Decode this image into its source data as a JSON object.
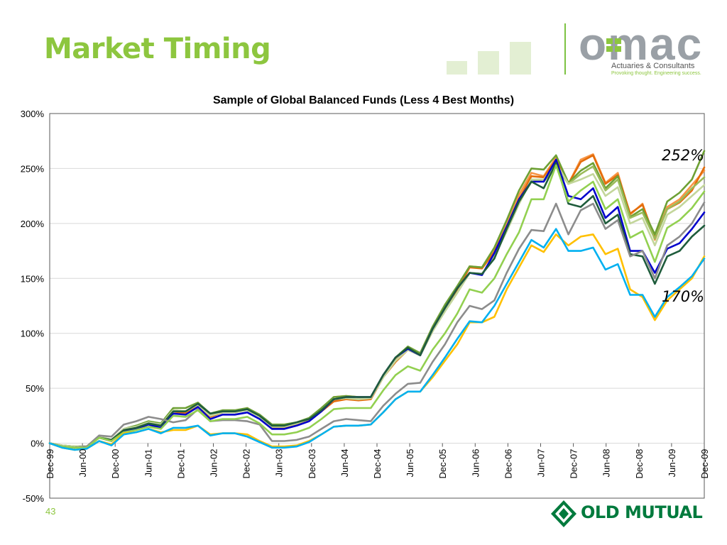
{
  "slide": {
    "title": "Market Timing",
    "page_number": "43"
  },
  "omac": {
    "name": "omac",
    "tagline": "Actuaries & Consultants",
    "subtagline": "Provoking thought. Engineering success."
  },
  "footer_logo": {
    "name": "OLD MUTUAL"
  },
  "annotations": {
    "top": "252%",
    "bottom": "170%"
  },
  "colors": {
    "title_green": "#8dc63f",
    "grid": "#d9d9d9"
  },
  "chart_data": {
    "type": "line",
    "title": "Sample of Global Balanced Funds (Less 4 Best Months)",
    "xlabel": "",
    "ylabel": "",
    "ylim": [
      -50,
      300
    ],
    "yticks": [
      -50,
      0,
      50,
      100,
      150,
      200,
      250,
      300
    ],
    "ytick_labels": [
      "-50%",
      "0%",
      "50%",
      "100%",
      "150%",
      "200%",
      "250%",
      "300%"
    ],
    "xtick_labels": [
      "Dec-99",
      "Jun-00",
      "Dec-00",
      "Jun-01",
      "Dec-01",
      "Jun-02",
      "Dec-02",
      "Jun-03",
      "Dec-03",
      "Jun-04",
      "Dec-04",
      "Jun-05",
      "Dec-05",
      "Jun-06",
      "Dec-06",
      "Jun-07",
      "Dec-07",
      "Jun-08",
      "Dec-08",
      "Jun-09",
      "Dec-09"
    ],
    "grid": true,
    "series": [
      {
        "color": "#f79646",
        "values": [
          0,
          -2,
          -3,
          -3,
          6,
          3,
          13,
          15,
          19,
          17,
          30,
          28,
          36,
          24,
          28,
          28,
          32,
          25,
          15,
          15,
          18,
          22,
          31,
          42,
          43,
          42,
          42,
          62,
          76,
          87,
          80,
          103,
          123,
          140,
          161,
          160,
          177,
          200,
          226,
          246,
          243,
          260,
          236,
          258,
          263,
          237,
          246,
          208,
          218,
          185,
          215,
          222,
          235,
          248
        ]
      },
      {
        "color": "#e46c0a",
        "values": [
          0,
          -3,
          -4,
          -4,
          5,
          2,
          12,
          14,
          18,
          16,
          29,
          27,
          35,
          24,
          28,
          28,
          31,
          24,
          14,
          14,
          17,
          21,
          29,
          38,
          40,
          39,
          40,
          60,
          74,
          85,
          80,
          102,
          121,
          139,
          160,
          159,
          174,
          197,
          222,
          243,
          242,
          258,
          236,
          256,
          262,
          236,
          244,
          209,
          217,
          187,
          213,
          219,
          230,
          251
        ]
      },
      {
        "color": "#6da034",
        "values": [
          0,
          -2,
          -3,
          -3,
          6,
          3,
          13,
          16,
          20,
          18,
          32,
          32,
          37,
          27,
          30,
          30,
          32,
          26,
          17,
          17,
          19,
          23,
          32,
          42,
          43,
          42,
          42,
          62,
          78,
          88,
          82,
          106,
          126,
          143,
          161,
          160,
          178,
          203,
          230,
          250,
          249,
          262,
          237,
          248,
          255,
          232,
          243,
          206,
          213,
          190,
          220,
          228,
          240,
          266
        ]
      },
      {
        "color": "#9bbb59",
        "values": [
          0,
          -2,
          -3,
          -3,
          6,
          3,
          13,
          15,
          19,
          17,
          30,
          29,
          36,
          25,
          29,
          29,
          31,
          25,
          15,
          15,
          18,
          22,
          30,
          40,
          41,
          40,
          41,
          60,
          75,
          85,
          80,
          102,
          120,
          137,
          155,
          154,
          170,
          193,
          218,
          240,
          238,
          252,
          236,
          245,
          252,
          230,
          240,
          205,
          210,
          186,
          213,
          220,
          232,
          242
        ]
      },
      {
        "color": "#c3d69b",
        "values": [
          0,
          -2,
          -3,
          -3,
          6,
          3,
          13,
          15,
          19,
          17,
          30,
          29,
          35,
          25,
          28,
          28,
          30,
          24,
          15,
          15,
          18,
          22,
          30,
          40,
          41,
          40,
          41,
          60,
          75,
          85,
          80,
          102,
          120,
          137,
          155,
          154,
          170,
          193,
          218,
          240,
          240,
          255,
          236,
          240,
          245,
          225,
          233,
          200,
          205,
          180,
          208,
          215,
          225,
          235
        ]
      },
      {
        "color": "#0000cc",
        "values": [
          0,
          -3,
          -4,
          -3,
          5,
          2,
          11,
          13,
          17,
          14,
          27,
          26,
          33,
          22,
          26,
          26,
          28,
          22,
          13,
          13,
          16,
          20,
          29,
          40,
          42,
          42,
          42,
          62,
          78,
          86,
          80,
          104,
          123,
          141,
          155,
          153,
          173,
          197,
          222,
          238,
          238,
          258,
          225,
          222,
          232,
          205,
          215,
          175,
          175,
          155,
          177,
          182,
          195,
          210
        ]
      },
      {
        "color": "#1f5c3c",
        "values": [
          0,
          -3,
          -4,
          -3,
          5,
          3,
          12,
          14,
          18,
          16,
          29,
          29,
          36,
          27,
          29,
          29,
          31,
          25,
          16,
          16,
          19,
          22,
          30,
          40,
          42,
          42,
          42,
          62,
          78,
          87,
          80,
          104,
          123,
          141,
          155,
          154,
          168,
          195,
          220,
          238,
          232,
          255,
          218,
          215,
          225,
          200,
          208,
          172,
          170,
          145,
          170,
          175,
          188,
          198
        ]
      },
      {
        "color": "#8c8c8c",
        "values": [
          0,
          -3,
          -4,
          -3,
          7,
          6,
          17,
          20,
          24,
          22,
          19,
          21,
          31,
          20,
          21,
          21,
          20,
          17,
          2,
          2,
          3,
          6,
          13,
          20,
          22,
          21,
          20,
          34,
          45,
          54,
          55,
          74,
          90,
          110,
          125,
          122,
          130,
          155,
          177,
          194,
          193,
          218,
          190,
          212,
          218,
          195,
          203,
          170,
          175,
          150,
          180,
          188,
          200,
          219
        ]
      },
      {
        "color": "#92d050",
        "values": [
          0,
          -3,
          -4,
          -4,
          5,
          2,
          10,
          12,
          15,
          13,
          25,
          24,
          30,
          20,
          22,
          22,
          24,
          18,
          8,
          8,
          10,
          14,
          22,
          31,
          32,
          32,
          32,
          48,
          62,
          70,
          66,
          85,
          100,
          118,
          140,
          137,
          150,
          172,
          192,
          222,
          222,
          253,
          220,
          230,
          238,
          213,
          222,
          187,
          193,
          165,
          196,
          203,
          214,
          229
        ]
      },
      {
        "color": "#ffc000",
        "values": [
          0,
          -4,
          -6,
          -5,
          2,
          -1,
          9,
          10,
          13,
          10,
          12,
          12,
          16,
          8,
          9,
          9,
          8,
          2,
          -3,
          -3,
          -2,
          2,
          8,
          15,
          16,
          16,
          17,
          28,
          40,
          47,
          47,
          60,
          75,
          90,
          110,
          110,
          115,
          140,
          160,
          180,
          174,
          190,
          180,
          188,
          190,
          172,
          177,
          140,
          133,
          112,
          130,
          140,
          150,
          170
        ]
      },
      {
        "color": "#00b0f0",
        "values": [
          0,
          -4,
          -6,
          -5,
          2,
          -2,
          8,
          10,
          13,
          9,
          14,
          14,
          16,
          7,
          9,
          9,
          6,
          1,
          -4,
          -4,
          -3,
          1,
          8,
          15,
          16,
          16,
          17,
          28,
          40,
          47,
          47,
          62,
          78,
          95,
          111,
          110,
          125,
          145,
          165,
          185,
          178,
          195,
          175,
          175,
          178,
          158,
          163,
          135,
          135,
          115,
          133,
          142,
          152,
          168
        ]
      }
    ]
  }
}
